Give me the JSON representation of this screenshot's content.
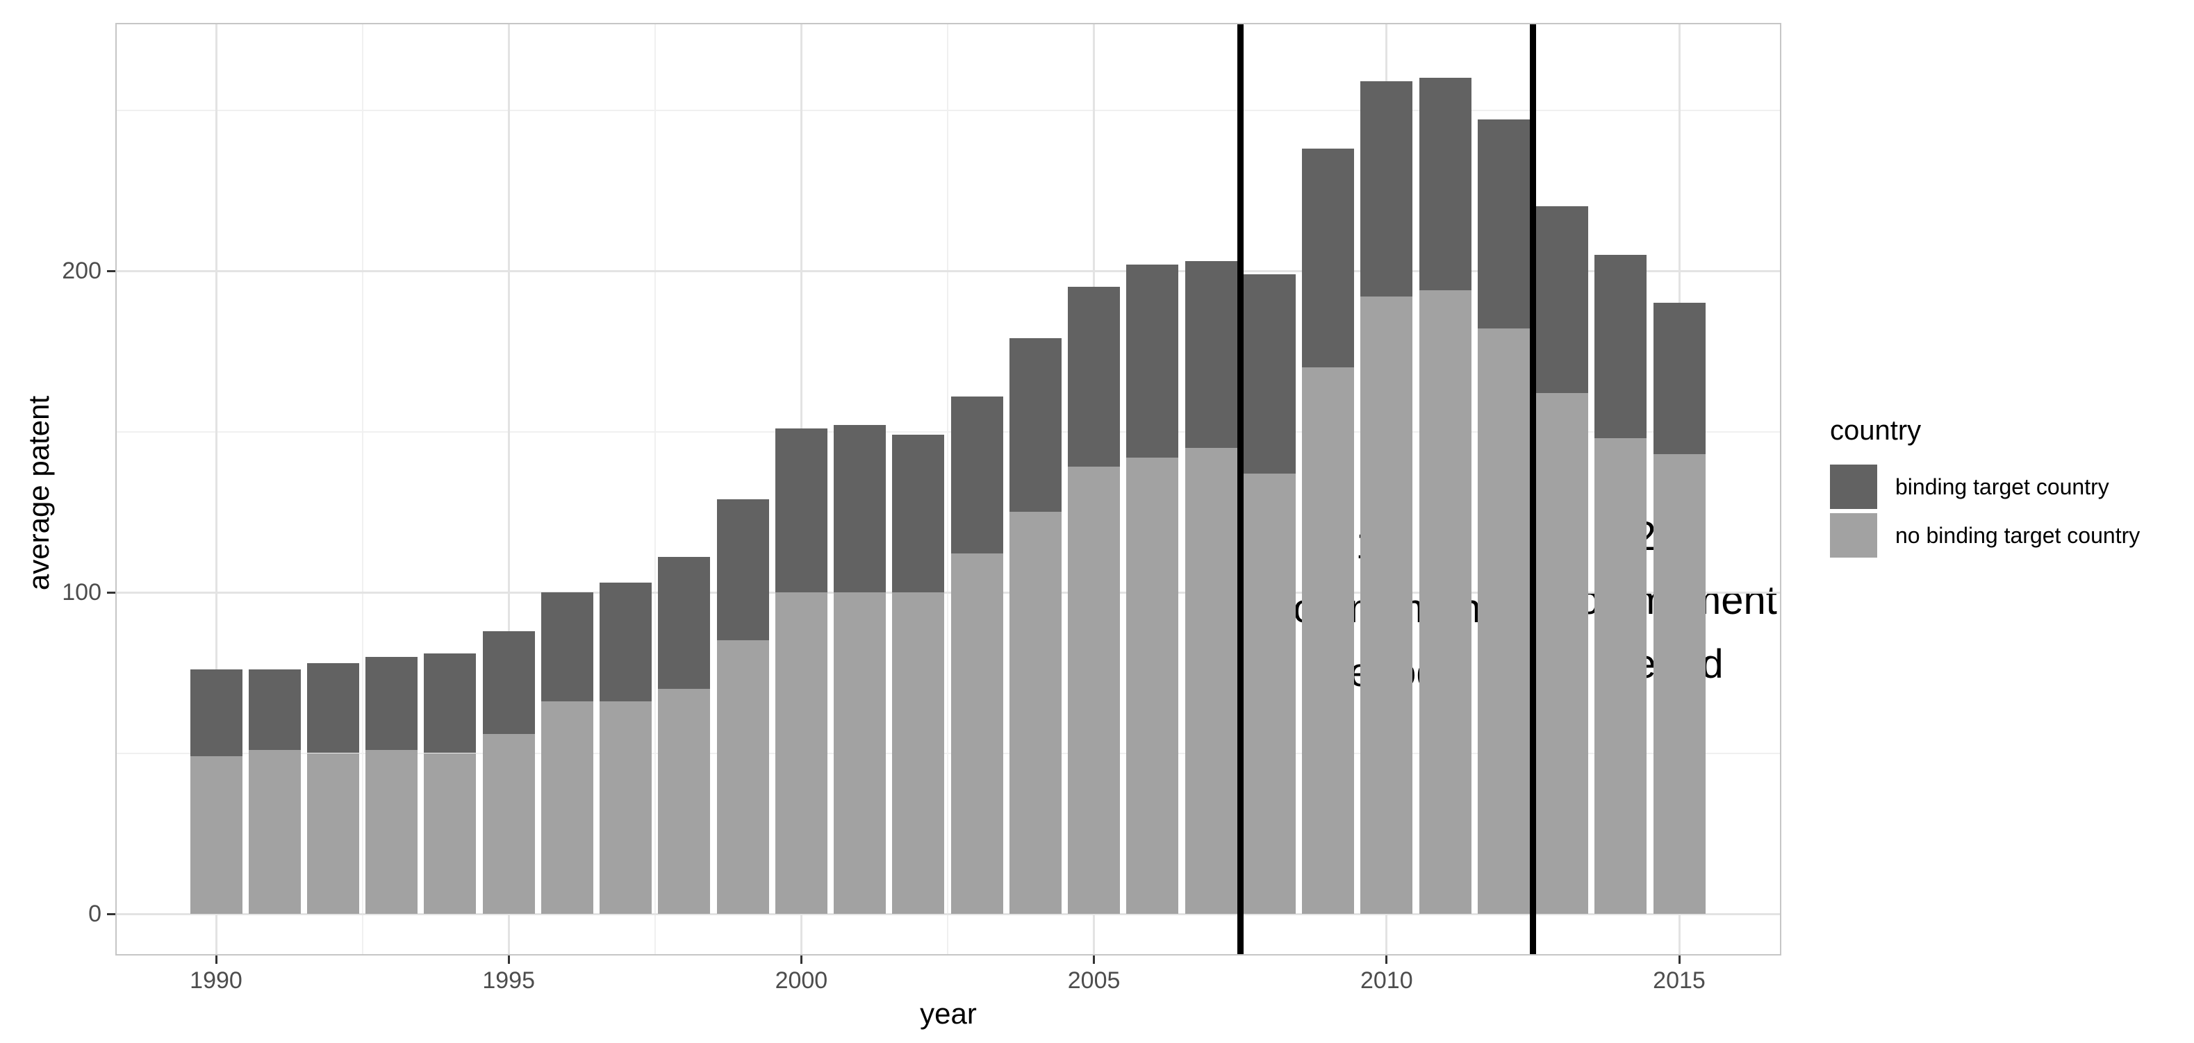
{
  "chart_data": {
    "type": "bar",
    "stacked": true,
    "title": "",
    "xlabel": "year",
    "ylabel": "average patent",
    "legend_title": "country",
    "legend_position": "right",
    "grid": true,
    "categories": [
      1990,
      1991,
      1992,
      1993,
      1994,
      1995,
      1996,
      1997,
      1998,
      1999,
      2000,
      2001,
      2002,
      2003,
      2004,
      2005,
      2006,
      2007,
      2008,
      2009,
      2010,
      2011,
      2012,
      2013,
      2014,
      2015
    ],
    "series": [
      {
        "name": "binding target country",
        "color": "#626262",
        "stack_position": "top",
        "values": [
          27,
          25,
          28,
          29,
          31,
          32,
          34,
          37,
          41,
          44,
          51,
          52,
          49,
          49,
          54,
          56,
          60,
          58,
          62,
          68,
          67,
          66,
          65,
          58,
          57,
          47
        ]
      },
      {
        "name": "no binding target country",
        "color": "#a2a2a2",
        "stack_position": "bottom",
        "values": [
          49,
          51,
          50,
          51,
          50,
          56,
          66,
          66,
          70,
          85,
          100,
          100,
          100,
          112,
          125,
          139,
          142,
          145,
          137,
          170,
          192,
          194,
          182,
          162,
          148,
          143
        ]
      }
    ],
    "totals": [
      76,
      76,
      78,
      80,
      81,
      88,
      100,
      103,
      111,
      129,
      151,
      152,
      149,
      161,
      179,
      195,
      202,
      203,
      199,
      238,
      259,
      260,
      247,
      220,
      205,
      190
    ],
    "x_ticks": [
      1990,
      1995,
      2000,
      2005,
      2010,
      2015
    ],
    "x_minor_ticks": [
      1992.5,
      1997.5,
      2002.5,
      2007.5,
      2012.5
    ],
    "y_ticks": [
      0,
      100,
      200
    ],
    "y_minor_ticks": [
      50,
      150,
      250
    ],
    "ylim": [
      0,
      276
    ],
    "vlines": [
      {
        "x": 2007.5,
        "color": "#000000",
        "label": [
          "1st",
          "commitment",
          "period"
        ]
      },
      {
        "x": 2012.5,
        "color": "#000000",
        "label": [
          "2nd",
          "commitment",
          "period"
        ]
      }
    ]
  }
}
